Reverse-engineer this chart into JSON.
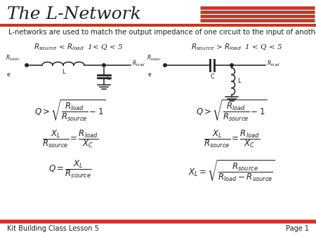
{
  "title": "The L-Network",
  "subtitle": "L-networks are used to match the output impedance of one circuit to the input of another.",
  "footer_left": "Kit Building Class Lesson 5",
  "footer_right": "Page 1",
  "bg_color": "#ffffff",
  "text_color": "#222222",
  "accent_color": "#c0392b"
}
